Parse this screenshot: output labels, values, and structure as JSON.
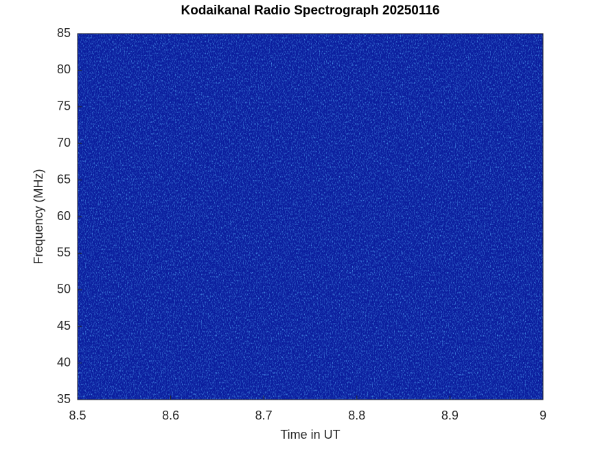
{
  "chart_data": {
    "type": "heatmap",
    "title": "Kodaikanal Radio Spectrograph  20250116",
    "xlabel": "Time in UT",
    "ylabel": "Frequency (MHz)",
    "xlim": [
      8.5,
      9
    ],
    "xticks": [
      8.5,
      8.6,
      8.7,
      8.8,
      8.9,
      9
    ],
    "ylim": [
      35,
      85
    ],
    "yticks": [
      35,
      40,
      45,
      50,
      55,
      60,
      65,
      70,
      75,
      80,
      85
    ],
    "color": "#0b1e9e"
  }
}
